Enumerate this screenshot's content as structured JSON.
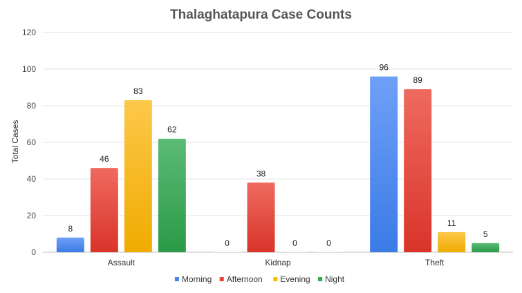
{
  "chart_data": {
    "type": "bar",
    "title": "Thalaghatapura Case Counts",
    "xlabel": "",
    "ylabel": "Total Cases",
    "ylim": [
      0,
      120
    ],
    "yticks": [
      0,
      20,
      40,
      60,
      80,
      100,
      120
    ],
    "grid": true,
    "legend_position": "bottom",
    "categories": [
      "Assault",
      "Kidnap",
      "Theft"
    ],
    "series": [
      {
        "name": "Morning",
        "color": "#4285F4",
        "values": [
          8,
          0,
          96
        ]
      },
      {
        "name": "Afternoon",
        "color": "#EA4335",
        "values": [
          46,
          38,
          89
        ]
      },
      {
        "name": "Evening",
        "color": "#FBBC04",
        "values": [
          83,
          0,
          11
        ]
      },
      {
        "name": "Night",
        "color": "#34A853",
        "values": [
          62,
          0,
          5
        ]
      }
    ]
  }
}
